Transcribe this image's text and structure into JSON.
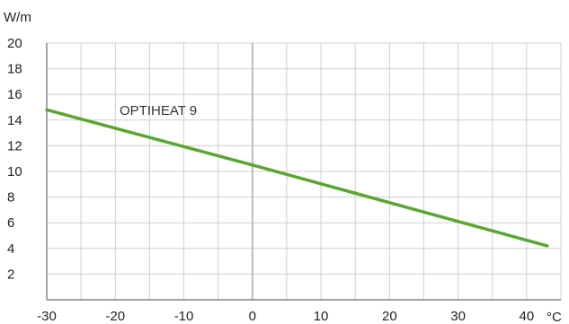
{
  "chart_data": {
    "type": "line",
    "ylabel": "W/m",
    "xunit": "°C",
    "xlim": [
      -30,
      45
    ],
    "ylim": [
      0,
      20
    ],
    "xticks": [
      -30,
      -20,
      -10,
      0,
      10,
      20,
      30,
      40
    ],
    "yticks": [
      2,
      4,
      6,
      8,
      10,
      12,
      14,
      16,
      18,
      20
    ],
    "grid": true,
    "series": [
      {
        "name": "OPTIHEAT 9",
        "x": [
          -30,
          0,
          43
        ],
        "y": [
          14.8,
          10.5,
          4.2
        ]
      }
    ],
    "colors": {
      "series": "#5aa632",
      "grid": "#d0d0d0",
      "zero_line": "#a8a8a8",
      "axis": "#6b6b6b"
    }
  }
}
